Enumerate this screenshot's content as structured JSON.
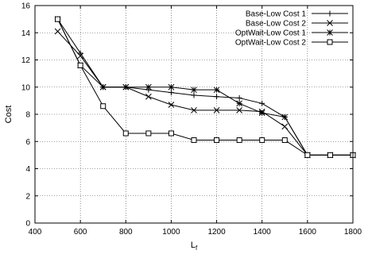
{
  "chart_data": {
    "type": "line",
    "title": "",
    "xlabel": "L",
    "xlabel_sub": "f",
    "ylabel": "Cost",
    "xlim": [
      400,
      1800
    ],
    "ylim": [
      0,
      16
    ],
    "xticks": [
      400,
      600,
      800,
      1000,
      1200,
      1400,
      1600,
      1800
    ],
    "yticks": [
      0,
      2,
      4,
      6,
      8,
      10,
      12,
      14,
      16
    ],
    "grid": true,
    "legend_position": "top-right",
    "x": [
      500,
      600,
      700,
      800,
      900,
      1000,
      1100,
      1200,
      1300,
      1400,
      1500,
      1600,
      1700,
      1800
    ],
    "series": [
      {
        "name": "Base-Low Cost 1",
        "marker": "plus",
        "values": [
          15.0,
          12.5,
          10.0,
          10.0,
          9.8,
          9.6,
          9.4,
          9.3,
          9.2,
          8.8,
          7.8,
          5.0,
          5.0,
          5.0
        ]
      },
      {
        "name": "Base-Low Cost 2",
        "marker": "cross",
        "values": [
          14.1,
          12.3,
          10.0,
          10.0,
          9.3,
          8.7,
          8.3,
          8.3,
          8.3,
          8.2,
          7.1,
          5.0,
          5.0,
          5.0
        ]
      },
      {
        "name": "OptWait-Low Cost 1",
        "marker": "star",
        "values": [
          15.0,
          11.6,
          10.0,
          10.0,
          10.0,
          10.0,
          9.8,
          9.8,
          8.8,
          8.1,
          7.8,
          5.0,
          5.0,
          5.0
        ]
      },
      {
        "name": "OptWait-Low Cost 2",
        "marker": "square",
        "values": [
          15.0,
          11.6,
          8.6,
          6.6,
          6.6,
          6.6,
          6.1,
          6.1,
          6.1,
          6.1,
          6.1,
          5.0,
          5.0,
          5.0
        ]
      }
    ]
  }
}
